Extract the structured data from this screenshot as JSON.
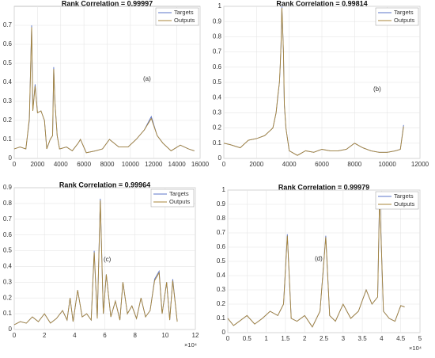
{
  "chart_data": [
    {
      "type": "line",
      "title": "Rank Correlation = 0.99997",
      "annotation": "(a)",
      "x": [
        0,
        500,
        1000,
        1300,
        1500,
        1600,
        1800,
        2000,
        2300,
        2600,
        2800,
        3100,
        3300,
        3400,
        3500,
        3700,
        3900,
        4500,
        5000,
        5500,
        5700,
        6200,
        7000,
        7600,
        8200,
        9000,
        9800,
        10500,
        11200,
        11800,
        12300,
        12800,
        13500,
        14300,
        15000,
        15500
      ],
      "series": [
        {
          "name": "Targets",
          "color": "#5b74c9",
          "values": [
            0.05,
            0.06,
            0.05,
            0.2,
            0.7,
            0.25,
            0.39,
            0.24,
            0.25,
            0.2,
            0.05,
            0.1,
            0.12,
            0.48,
            0.3,
            0.12,
            0.05,
            0.06,
            0.04,
            0.08,
            0.1,
            0.03,
            0.04,
            0.05,
            0.1,
            0.06,
            0.06,
            0.1,
            0.15,
            0.22,
            0.12,
            0.08,
            0.04,
            0.07,
            0.05,
            0.04
          ]
        },
        {
          "name": "Outputs",
          "color": "#a8863a",
          "values": [
            0.05,
            0.06,
            0.05,
            0.21,
            0.69,
            0.25,
            0.38,
            0.24,
            0.25,
            0.2,
            0.05,
            0.1,
            0.12,
            0.47,
            0.3,
            0.12,
            0.05,
            0.06,
            0.04,
            0.08,
            0.1,
            0.03,
            0.04,
            0.05,
            0.1,
            0.06,
            0.06,
            0.1,
            0.15,
            0.21,
            0.12,
            0.08,
            0.04,
            0.07,
            0.05,
            0.04
          ]
        }
      ],
      "xlim": [
        0,
        16000
      ],
      "xticks": [
        0,
        2000,
        4000,
        6000,
        8000,
        10000,
        12000,
        14000,
        16000
      ],
      "ylim": [
        0,
        0.8
      ],
      "yticks": [
        0,
        0.1,
        0.2,
        0.3,
        0.4,
        0.5,
        0.6,
        0.7
      ],
      "grid": true,
      "legend": "upper right"
    },
    {
      "type": "line",
      "title": "Rank Correlation = 0.99814",
      "annotation": "(b)",
      "x": [
        0,
        400,
        1000,
        1500,
        2000,
        2500,
        2800,
        3000,
        3200,
        3300,
        3400,
        3450,
        3500,
        3550,
        3600,
        3650,
        3700,
        3800,
        4000,
        4500,
        5000,
        5500,
        6000,
        6500,
        7000,
        7500,
        8000,
        8500,
        9000,
        9500,
        10000,
        10500,
        10800,
        11000
      ],
      "series": [
        {
          "name": "Targets",
          "color": "#5b74c9",
          "values": [
            0.1,
            0.09,
            0.07,
            0.12,
            0.13,
            0.15,
            0.18,
            0.2,
            0.3,
            0.4,
            0.5,
            0.6,
            0.75,
            1.0,
            0.85,
            0.7,
            0.35,
            0.2,
            0.05,
            0.02,
            0.05,
            0.04,
            0.06,
            0.05,
            0.05,
            0.06,
            0.1,
            0.07,
            0.05,
            0.04,
            0.04,
            0.05,
            0.06,
            0.22
          ]
        },
        {
          "name": "Outputs",
          "color": "#a8863a",
          "values": [
            0.1,
            0.09,
            0.07,
            0.12,
            0.13,
            0.15,
            0.18,
            0.2,
            0.3,
            0.41,
            0.5,
            0.61,
            0.74,
            0.99,
            0.85,
            0.7,
            0.36,
            0.2,
            0.05,
            0.02,
            0.05,
            0.04,
            0.06,
            0.05,
            0.05,
            0.06,
            0.1,
            0.07,
            0.05,
            0.04,
            0.04,
            0.05,
            0.06,
            0.21
          ]
        }
      ],
      "xlim": [
        0,
        12000
      ],
      "xticks": [
        0,
        2000,
        4000,
        6000,
        8000,
        10000,
        12000
      ],
      "ylim": [
        0,
        1
      ],
      "yticks": [
        0,
        0.1,
        0.2,
        0.3,
        0.4,
        0.5,
        0.6,
        0.7,
        0.8,
        0.9,
        1
      ],
      "grid": true,
      "legend": "upper right"
    },
    {
      "type": "line",
      "title": "Rank Correlation = 0.99964",
      "annotation": "(c)",
      "x_exponent": "×10⁴",
      "x": [
        0,
        0.4,
        0.8,
        1.2,
        1.6,
        2.0,
        2.4,
        2.8,
        3.2,
        3.5,
        3.7,
        3.9,
        4.2,
        4.5,
        4.8,
        5.1,
        5.3,
        5.5,
        5.7,
        5.9,
        6.1,
        6.4,
        6.7,
        7.0,
        7.2,
        7.5,
        7.8,
        8.1,
        8.4,
        8.7,
        9.0,
        9.3,
        9.6,
        9.8,
        10.1,
        10.3,
        10.5,
        10.8
      ],
      "series": [
        {
          "name": "Targets",
          "color": "#5b74c9",
          "values": [
            0.03,
            0.05,
            0.04,
            0.08,
            0.05,
            0.1,
            0.04,
            0.07,
            0.12,
            0.06,
            0.2,
            0.05,
            0.25,
            0.08,
            0.1,
            0.06,
            0.5,
            0.07,
            0.83,
            0.1,
            0.35,
            0.08,
            0.18,
            0.06,
            0.3,
            0.1,
            0.15,
            0.07,
            0.2,
            0.08,
            0.12,
            0.32,
            0.37,
            0.1,
            0.3,
            0.06,
            0.32,
            0.05
          ]
        },
        {
          "name": "Outputs",
          "color": "#a8863a",
          "values": [
            0.03,
            0.05,
            0.04,
            0.08,
            0.05,
            0.1,
            0.04,
            0.07,
            0.12,
            0.06,
            0.2,
            0.05,
            0.25,
            0.08,
            0.1,
            0.06,
            0.49,
            0.07,
            0.82,
            0.1,
            0.35,
            0.08,
            0.18,
            0.06,
            0.3,
            0.1,
            0.15,
            0.07,
            0.2,
            0.08,
            0.12,
            0.31,
            0.36,
            0.1,
            0.3,
            0.06,
            0.31,
            0.05
          ]
        }
      ],
      "xlim": [
        0,
        12
      ],
      "xticks": [
        0,
        2,
        4,
        6,
        8,
        10,
        12
      ],
      "ylim": [
        0,
        0.9
      ],
      "yticks": [
        0,
        0.1,
        0.2,
        0.3,
        0.4,
        0.5,
        0.6,
        0.7,
        0.8,
        0.9
      ],
      "grid": true,
      "legend": "upper right"
    },
    {
      "type": "line",
      "title": "Rank Correlation = 0.99979",
      "annotation": "(d)",
      "x_exponent": "×10⁴",
      "x": [
        0,
        0.15,
        0.3,
        0.5,
        0.7,
        0.9,
        1.1,
        1.3,
        1.45,
        1.55,
        1.65,
        1.8,
        2.0,
        2.2,
        2.4,
        2.55,
        2.65,
        2.8,
        3.0,
        3.2,
        3.4,
        3.6,
        3.75,
        3.9,
        3.95,
        4.05,
        4.2,
        4.35,
        4.5,
        4.6
      ],
      "series": [
        {
          "name": "Targets",
          "color": "#5b74c9",
          "values": [
            0.1,
            0.05,
            0.08,
            0.12,
            0.06,
            0.1,
            0.15,
            0.12,
            0.2,
            0.69,
            0.1,
            0.08,
            0.12,
            0.04,
            0.15,
            0.68,
            0.12,
            0.08,
            0.2,
            0.1,
            0.15,
            0.3,
            0.2,
            0.25,
            0.98,
            0.15,
            0.1,
            0.08,
            0.19,
            0.18
          ]
        },
        {
          "name": "Outputs",
          "color": "#a8863a",
          "values": [
            0.1,
            0.05,
            0.08,
            0.12,
            0.06,
            0.1,
            0.15,
            0.12,
            0.2,
            0.68,
            0.1,
            0.08,
            0.12,
            0.04,
            0.15,
            0.67,
            0.12,
            0.08,
            0.2,
            0.1,
            0.15,
            0.3,
            0.2,
            0.25,
            0.97,
            0.15,
            0.1,
            0.08,
            0.19,
            0.18
          ]
        }
      ],
      "xlim": [
        0,
        5
      ],
      "xticks": [
        0,
        0.5,
        1,
        1.5,
        2,
        2.5,
        3,
        3.5,
        4,
        4.5,
        5
      ],
      "ylim": [
        0,
        1
      ],
      "yticks": [
        0,
        0.1,
        0.2,
        0.3,
        0.4,
        0.5,
        0.6,
        0.7,
        0.8,
        0.9,
        1
      ],
      "grid": true,
      "legend": "upper right"
    }
  ]
}
